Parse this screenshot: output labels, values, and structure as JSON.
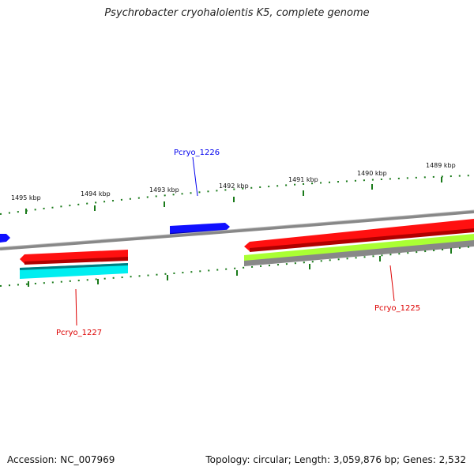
{
  "title": "Psychrobacter cryohalolentis K5, complete genome",
  "footer": {
    "accession": "Accession: NC_007969",
    "summary": "Topology: circular; Length: 3,059,876 bp; Genes: 2,532"
  },
  "ticks": [
    {
      "label": "1495 kbp"
    },
    {
      "label": "1494 kbp"
    },
    {
      "label": "1493 kbp"
    },
    {
      "label": "1492 kbp"
    },
    {
      "label": "1491 kbp"
    },
    {
      "label": "1490 kbp"
    },
    {
      "label": "1489 kbp"
    }
  ],
  "genes": [
    {
      "label": "Pcryo_1226",
      "color": "#0000ee"
    },
    {
      "label": "Pcryo_1227",
      "color": "#dd0000"
    },
    {
      "label": "Pcryo_1225",
      "color": "#dd0000"
    }
  ],
  "colors": {
    "backbone": "#777777",
    "ticks": "#1a7a1a",
    "cds_forward": "#0000ee",
    "cds_reverse": "#ff0000",
    "cyan_feature": "#00e5ee",
    "lime_feature": "#aaff33"
  }
}
